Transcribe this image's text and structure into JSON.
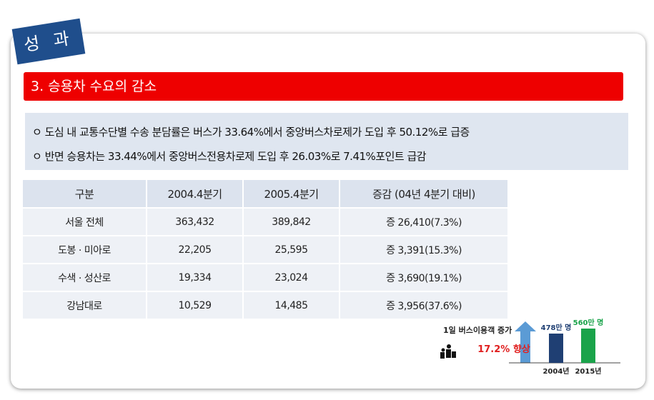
{
  "tag": "성 과",
  "header": {
    "title": "3. 승용차 수요의 감소"
  },
  "bullets": [
    "ㅇ 도심 내 교통수단별 수송 분담률은 버스가 33.64%에서 중앙버스차로제가 도입 후 50.12%로 급증",
    "ㅇ 반면 승용차는 33.44%에서 중앙버스전용차로제 도입 후 26.03%로 7.41%포인트 급감"
  ],
  "table": {
    "columns": [
      "구분",
      "2004.4분기",
      "2005.4분기",
      "증감 (04년 4분기 대비)"
    ],
    "rows": [
      [
        "서울 전체",
        "363,432",
        "389,842",
        "증 26,410(7.3%)"
      ],
      [
        "도봉 · 미아로",
        "22,205",
        "25,595",
        "증 3,391(15.3%)"
      ],
      [
        "수색 · 성산로",
        "19,334",
        "23,024",
        "증 3,690(19.1%)"
      ],
      [
        "강남대로",
        "10,529",
        "14,485",
        "증 3,956(37.6%)"
      ]
    ]
  },
  "infographic": {
    "title": "1일 버스이용객 증가",
    "change": "17.2% 향상",
    "bars": [
      {
        "label": "2004년",
        "value": 478,
        "value_label": "478만 명",
        "color": "#1f3f73"
      },
      {
        "label": "2015년",
        "value": 560,
        "value_label": "560만 명",
        "color": "#1aa34a"
      }
    ]
  }
}
